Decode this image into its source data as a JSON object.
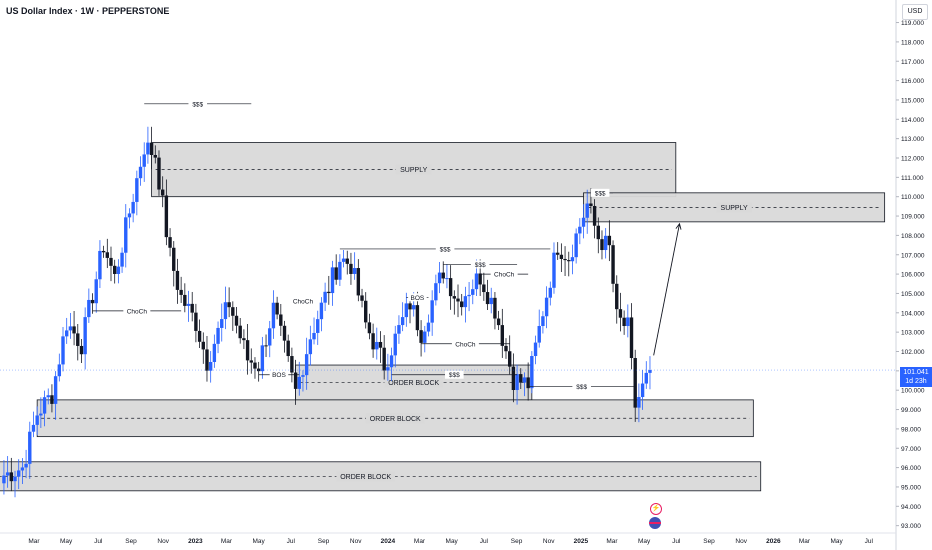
{
  "header": {
    "title": "US Dollar Index · 1W · PEPPERSTONE",
    "currency": "USD"
  },
  "price_label": {
    "value": "101.041",
    "countdown": "1d 23h"
  },
  "colors": {
    "up": "#2962ff",
    "down": "#131722",
    "zone_fill": "#d9d9d9",
    "zone_border": "#131722",
    "last_line": "#2962ff"
  },
  "icons": [
    "flash-icon",
    "us-flag-icon"
  ],
  "chart_data": {
    "type": "candlestick",
    "title": "US Dollar Index · 1W · PEPPERSTONE",
    "xlabel": "",
    "ylabel": "",
    "ylim": [
      92.6,
      120.5
    ],
    "grid": false,
    "y_ticks": [
      "119.000",
      "118.000",
      "117.000",
      "116.000",
      "115.000",
      "114.000",
      "113.000",
      "112.000",
      "111.000",
      "110.000",
      "109.000",
      "108.000",
      "107.000",
      "106.000",
      "105.000",
      "104.000",
      "103.000",
      "102.000",
      "101.000",
      "100.000",
      "99.000",
      "98.000",
      "97.000",
      "96.000",
      "95.000",
      "94.000",
      "93.000"
    ],
    "x_ticks": [
      {
        "label": "Mar",
        "date": "2022-03-01"
      },
      {
        "label": "May",
        "date": "2022-05-01"
      },
      {
        "label": "Jul",
        "date": "2022-07-01"
      },
      {
        "label": "Sep",
        "date": "2022-09-01"
      },
      {
        "label": "Nov",
        "date": "2022-11-01"
      },
      {
        "label": "2023",
        "date": "2023-01-01"
      },
      {
        "label": "Mar",
        "date": "2023-03-01"
      },
      {
        "label": "May",
        "date": "2023-05-01"
      },
      {
        "label": "Jul",
        "date": "2023-07-01"
      },
      {
        "label": "Sep",
        "date": "2023-09-01"
      },
      {
        "label": "Nov",
        "date": "2023-11-01"
      },
      {
        "label": "2024",
        "date": "2024-01-01"
      },
      {
        "label": "Mar",
        "date": "2024-03-01"
      },
      {
        "label": "May",
        "date": "2024-05-01"
      },
      {
        "label": "Jul",
        "date": "2024-07-01"
      },
      {
        "label": "Sep",
        "date": "2024-09-01"
      },
      {
        "label": "Nov",
        "date": "2024-11-01"
      },
      {
        "label": "2025",
        "date": "2025-01-01"
      },
      {
        "label": "Mar",
        "date": "2025-03-01"
      },
      {
        "label": "May",
        "date": "2025-05-01"
      },
      {
        "label": "Jul",
        "date": "2025-07-01"
      },
      {
        "label": "Sep",
        "date": "2025-09-01"
      },
      {
        "label": "Nov",
        "date": "2025-11-01"
      },
      {
        "label": "2026",
        "date": "2026-01-01"
      },
      {
        "label": "Mar",
        "date": "2026-03-01"
      },
      {
        "label": "May",
        "date": "2026-05-01"
      },
      {
        "label": "Jul",
        "date": "2026-07-01"
      }
    ],
    "close_anchors": [
      {
        "date": "2022-01-03",
        "value": 95.6
      },
      {
        "date": "2022-02-07",
        "value": 96.0
      },
      {
        "date": "2022-03-07",
        "value": 98.8
      },
      {
        "date": "2022-04-04",
        "value": 99.8
      },
      {
        "date": "2022-05-02",
        "value": 103.5
      },
      {
        "date": "2022-05-30",
        "value": 102.4
      },
      {
        "date": "2022-07-11",
        "value": 107.5
      },
      {
        "date": "2022-08-01",
        "value": 105.8
      },
      {
        "date": "2022-09-26",
        "value": 112.6
      },
      {
        "date": "2022-10-17",
        "value": 112.2
      },
      {
        "date": "2022-11-14",
        "value": 106.9
      },
      {
        "date": "2022-12-05",
        "value": 104.8
      },
      {
        "date": "2023-01-02",
        "value": 103.5
      },
      {
        "date": "2023-01-23",
        "value": 101.5
      },
      {
        "date": "2023-03-06",
        "value": 104.5
      },
      {
        "date": "2023-04-10",
        "value": 101.6
      },
      {
        "date": "2023-05-01",
        "value": 101.3
      },
      {
        "date": "2023-05-29",
        "value": 104.2
      },
      {
        "date": "2023-07-10",
        "value": 99.9
      },
      {
        "date": "2023-08-07",
        "value": 102.8
      },
      {
        "date": "2023-10-02",
        "value": 106.8
      },
      {
        "date": "2023-10-23",
        "value": 106.5
      },
      {
        "date": "2023-11-20",
        "value": 103.4
      },
      {
        "date": "2023-12-25",
        "value": 101.3
      },
      {
        "date": "2024-02-12",
        "value": 104.5
      },
      {
        "date": "2024-03-04",
        "value": 103.0
      },
      {
        "date": "2024-04-15",
        "value": 106.2
      },
      {
        "date": "2024-05-13",
        "value": 104.6
      },
      {
        "date": "2024-06-24",
        "value": 105.9
      },
      {
        "date": "2024-07-22",
        "value": 104.2
      },
      {
        "date": "2024-08-26",
        "value": 100.6
      },
      {
        "date": "2024-09-23",
        "value": 100.3
      },
      {
        "date": "2024-10-21",
        "value": 104.1
      },
      {
        "date": "2024-11-18",
        "value": 107.5
      },
      {
        "date": "2024-12-09",
        "value": 106.9
      },
      {
        "date": "2025-01-13",
        "value": 109.6
      },
      {
        "date": "2025-02-03",
        "value": 107.9
      },
      {
        "date": "2025-02-24",
        "value": 107.3
      },
      {
        "date": "2025-03-10",
        "value": 103.7
      },
      {
        "date": "2025-03-31",
        "value": 103.2
      },
      {
        "date": "2025-04-14",
        "value": 99.2
      },
      {
        "date": "2025-05-12",
        "value": 101.0
      }
    ],
    "last_price": 101.041,
    "zones": [
      {
        "label": "SUPPLY",
        "start": "2022-10-10",
        "end": "2025-06-30",
        "low": 110.0,
        "high": 112.8
      },
      {
        "label": "SUPPLY",
        "start": "2025-01-06",
        "end": "2026-07-31",
        "low": 108.7,
        "high": 110.2
      },
      {
        "label": "ORDER BLOCK",
        "start": "2023-07-10",
        "end": "2024-09-30",
        "low": 99.5,
        "high": 101.3
      },
      {
        "label": "ORDER BLOCK",
        "start": "2022-03-07",
        "end": "2025-11-24",
        "low": 97.6,
        "high": 99.5
      },
      {
        "label": "ORDER BLOCK",
        "start": "2021-11-01",
        "end": "2025-12-08",
        "low": 94.8,
        "high": 96.3
      }
    ],
    "annotations": [
      {
        "label": "$$$",
        "start": "2022-09-26",
        "end": "2023-04-17",
        "value": 114.8
      },
      {
        "label": "$$$",
        "start": "2023-10-02",
        "end": "2024-11-04",
        "value": 107.3
      },
      {
        "label": "$$$",
        "start": "2024-04-15",
        "end": "2024-09-02",
        "value": 106.5
      },
      {
        "label": "ChoCh",
        "start": "2024-06-24",
        "end": "2024-09-23",
        "value": 106.0
      },
      {
        "label": "$$$",
        "start": "2025-01-13",
        "end": "2025-03-03",
        "value": 110.2
      },
      {
        "label": "ChoCh",
        "start": "2022-06-20",
        "end": "2022-12-05",
        "value": 104.1
      },
      {
        "label": "ChoCh",
        "start": "2023-07-03",
        "end": "2023-08-14",
        "value": 104.6
      },
      {
        "label": "BOS",
        "start": "2024-02-05",
        "end": "2024-03-18",
        "value": 104.8
      },
      {
        "label": "ChoCh",
        "start": "2024-03-04",
        "end": "2024-08-19",
        "value": 102.4
      },
      {
        "label": "BOS",
        "start": "2023-05-01",
        "end": "2023-07-17",
        "value": 100.8
      },
      {
        "label": "$$$",
        "start": "2024-01-08",
        "end": "2024-09-02",
        "value": 100.8
      },
      {
        "label": "$$$",
        "start": "2024-09-23",
        "end": "2025-04-14",
        "value": 100.2
      }
    ],
    "projection": {
      "from_date": "2025-05-19",
      "from_value": 101.8,
      "to_date": "2025-07-07",
      "to_value": 108.6
    }
  }
}
